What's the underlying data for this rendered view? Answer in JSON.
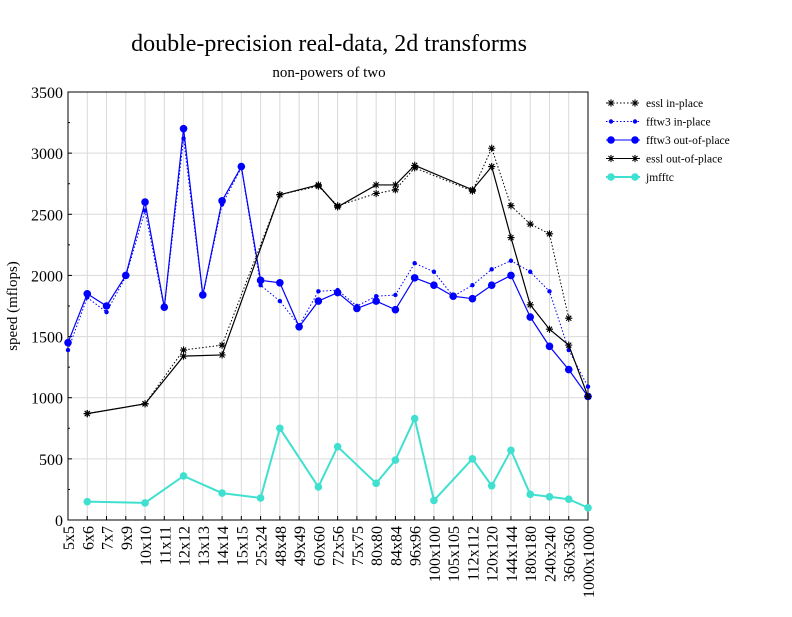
{
  "chart_data": {
    "type": "line",
    "title": "double-precision real-data, 2d transforms",
    "subtitle": "non-powers of two",
    "xlabel": "",
    "ylabel": "speed (mflops)",
    "ylim": [
      0,
      3500
    ],
    "yticks": [
      0,
      500,
      1000,
      1500,
      2000,
      2500,
      3000,
      3500
    ],
    "grid": true,
    "legend_position": "right",
    "categories": [
      "5x5",
      "6x6",
      "7x7",
      "9x9",
      "10x10",
      "11x11",
      "12x12",
      "13x13",
      "14x14",
      "15x15",
      "25x24",
      "48x48",
      "49x49",
      "60x60",
      "72x56",
      "75x75",
      "80x80",
      "84x84",
      "96x96",
      "100x100",
      "105x105",
      "112x112",
      "120x120",
      "144x144",
      "180x180",
      "240x240",
      "360x360",
      "1000x1000"
    ],
    "series": [
      {
        "name": "essl in-place",
        "color": "#000000",
        "line": "dotted",
        "marker": "star",
        "values": [
          null,
          870,
          null,
          null,
          950,
          null,
          1390,
          null,
          1430,
          null,
          null,
          2660,
          null,
          2730,
          2570,
          null,
          2670,
          2700,
          2880,
          null,
          null,
          2690,
          3040,
          2570,
          2420,
          2340,
          1650,
          null
        ]
      },
      {
        "name": "fftw3 in-place",
        "color": "#0000ff",
        "line": "dotted",
        "marker": "small-dot",
        "values": [
          1390,
          1820,
          1700,
          1990,
          2530,
          1730,
          3120,
          1830,
          2580,
          2880,
          1920,
          1790,
          1590,
          1870,
          1880,
          1750,
          1830,
          1840,
          2100,
          2030,
          1830,
          1920,
          2050,
          2120,
          2030,
          1870,
          1390,
          1090
        ]
      },
      {
        "name": "fftw3 out-of-place",
        "color": "#0000ff",
        "line": "solid",
        "marker": "dot",
        "values": [
          1450,
          1850,
          1750,
          2000,
          2600,
          1740,
          3200,
          1840,
          2610,
          2890,
          1960,
          1940,
          1580,
          1790,
          1860,
          1730,
          1790,
          1720,
          1980,
          1920,
          1830,
          1810,
          1920,
          2000,
          1660,
          1420,
          1230,
          1010
        ]
      },
      {
        "name": "essl out-of-place",
        "color": "#000000",
        "line": "solid",
        "marker": "star",
        "values": [
          null,
          870,
          null,
          null,
          950,
          null,
          1340,
          null,
          1350,
          null,
          null,
          2660,
          null,
          2740,
          2560,
          null,
          2740,
          2740,
          2900,
          null,
          null,
          2700,
          2890,
          2310,
          1760,
          1560,
          1430,
          1010
        ]
      },
      {
        "name": "jmfftc",
        "color": "#40e0d0",
        "line": "solid",
        "marker": "dot",
        "values": [
          null,
          150,
          null,
          null,
          140,
          null,
          360,
          null,
          220,
          null,
          180,
          750,
          null,
          270,
          600,
          null,
          300,
          490,
          830,
          160,
          null,
          500,
          280,
          570,
          210,
          190,
          170,
          100
        ]
      }
    ]
  }
}
